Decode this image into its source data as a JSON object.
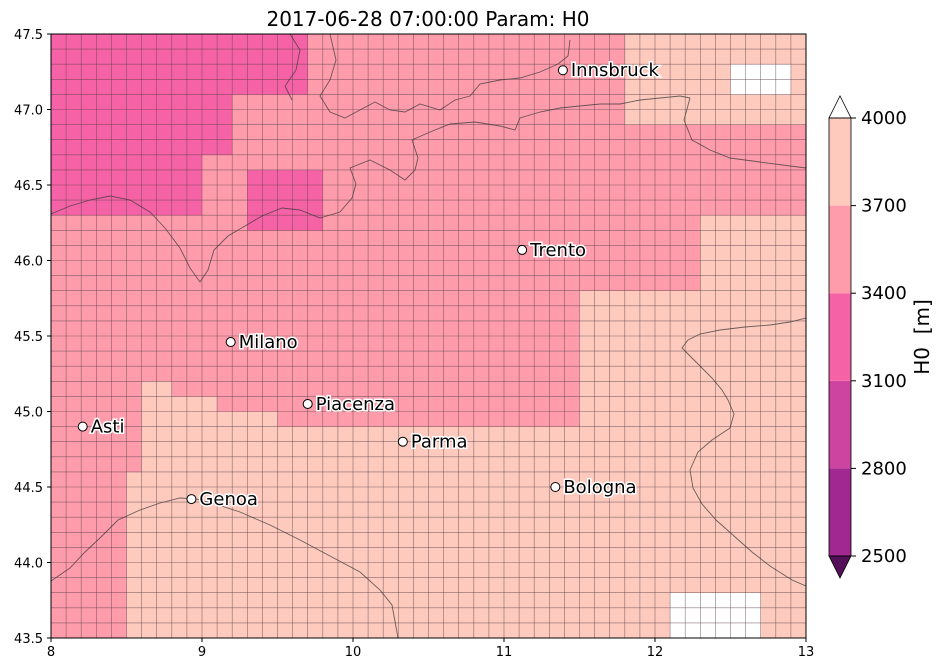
{
  "title": "2017-06-28 07:00:00 Param: H0",
  "map": {
    "lon_range": [
      8,
      13
    ],
    "lat_range": [
      43.5,
      47.5
    ],
    "grid_step_lon": 0.1,
    "grid_step_lat": 0.1,
    "x_ticks": [
      "8",
      "9",
      "10",
      "11",
      "12",
      "13"
    ],
    "y_ticks": [
      "43.5",
      "44.0",
      "44.5",
      "45.0",
      "45.5",
      "46.0",
      "46.5",
      "47.0",
      "47.5"
    ]
  },
  "colorbar": {
    "label": "H0  [m]",
    "levels": [
      "2500",
      "2800",
      "3100",
      "3400",
      "3700",
      "4000"
    ],
    "colors": [
      "#701a70",
      "#a02890",
      "#cc449f",
      "#f662a6",
      "#fe9cab",
      "#fdcabd"
    ],
    "over_color": "#ffffff",
    "under_color": "#55105a"
  },
  "cities": [
    {
      "name": "Innsbruck",
      "lon": 11.39,
      "lat": 47.26
    },
    {
      "name": "Trento",
      "lon": 11.12,
      "lat": 46.07
    },
    {
      "name": "Milano",
      "lon": 9.19,
      "lat": 45.46
    },
    {
      "name": "Piacenza",
      "lon": 9.7,
      "lat": 45.05
    },
    {
      "name": "Asti",
      "lon": 8.21,
      "lat": 44.9
    },
    {
      "name": "Parma",
      "lon": 10.33,
      "lat": 44.8
    },
    {
      "name": "Bologna",
      "lon": 11.34,
      "lat": 44.5
    },
    {
      "name": "Genoa",
      "lon": 8.93,
      "lat": 44.42
    }
  ]
}
